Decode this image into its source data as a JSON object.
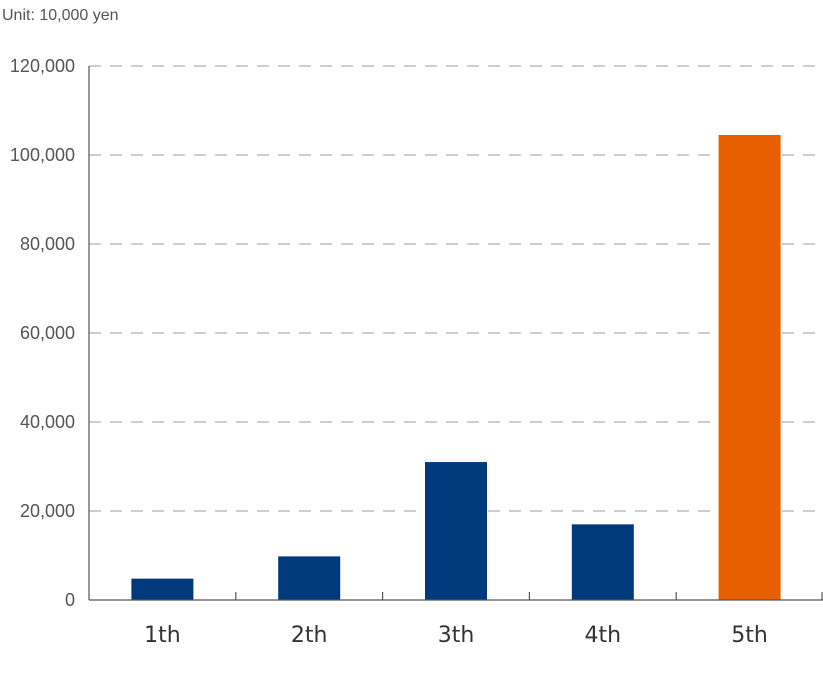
{
  "chart_data": {
    "type": "bar",
    "unit_label": "Unit: 10,000 yen",
    "categories": [
      "1th",
      "2th",
      "3th",
      "4th",
      "5th"
    ],
    "values": [
      4800,
      9800,
      31000,
      17000,
      104500
    ],
    "bar_colors": [
      "#003a7d",
      "#003a7d",
      "#003a7d",
      "#003a7d",
      "#e85f00"
    ],
    "ylim": [
      0,
      120000
    ],
    "yticks": [
      0,
      20000,
      40000,
      60000,
      80000,
      100000,
      120000
    ],
    "ytick_labels": [
      "0",
      "20,000",
      "40,000",
      "60,000",
      "80,000",
      "100,000",
      "120,000"
    ],
    "grid": true,
    "title": "",
    "xlabel": "",
    "ylabel": ""
  }
}
